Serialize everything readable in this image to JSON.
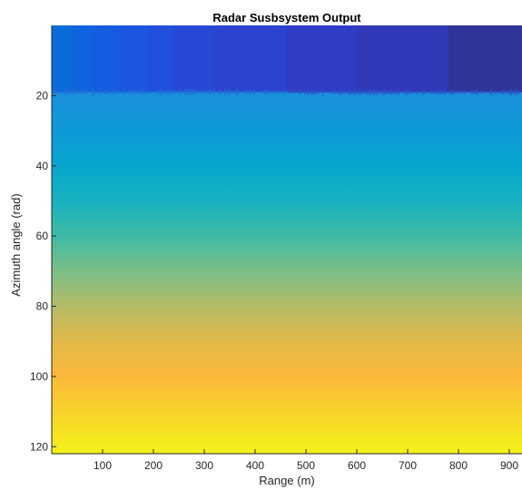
{
  "chart_data": {
    "type": "heatmap",
    "title": "Radar Susbsystem Output",
    "xlabel": "Range (m)",
    "ylabel": "Azimuth angle (rad)",
    "xlim": [
      0,
      925
    ],
    "ylim": [
      122,
      0
    ],
    "y_direction": "reversed",
    "x_ticks": [
      100,
      200,
      300,
      400,
      500,
      600,
      700,
      800,
      900
    ],
    "x_tick_labels": [
      "100",
      "200",
      "300",
      "400",
      "500",
      "600",
      "700",
      "800",
      "900"
    ],
    "y_ticks": [
      20,
      40,
      60,
      80,
      100,
      120
    ],
    "y_tick_labels": [
      "20",
      "40",
      "60",
      "80",
      "100",
      "120"
    ],
    "colormap": "parula",
    "colorbar": false,
    "grid": false,
    "top_band": {
      "row_range": [
        0,
        19
      ],
      "segments": [
        {
          "x_range": [
            0,
            40
          ],
          "color": "#0a6cd8"
        },
        {
          "x_range": [
            40,
            80
          ],
          "color": "#0f63dc"
        },
        {
          "x_range": [
            80,
            130
          ],
          "color": "#155de0"
        },
        {
          "x_range": [
            130,
            190
          ],
          "color": "#1a56e0"
        },
        {
          "x_range": [
            190,
            240
          ],
          "color": "#2150dc"
        },
        {
          "x_range": [
            240,
            320
          ],
          "color": "#2749d6"
        },
        {
          "x_range": [
            320,
            460
          ],
          "color": "#2c43cf"
        },
        {
          "x_range": [
            460,
            600
          ],
          "color": "#2f3dc6"
        },
        {
          "x_range": [
            600,
            780
          ],
          "color": "#3038b8"
        },
        {
          "x_range": [
            780,
            925
          ],
          "color": "#2f3597"
        }
      ]
    },
    "vertical_gradient": [
      {
        "y": 19,
        "color": "#1b8fdc"
      },
      {
        "y": 30,
        "color": "#0d9ad8"
      },
      {
        "y": 40,
        "color": "#08a6cf"
      },
      {
        "y": 50,
        "color": "#17b2c0"
      },
      {
        "y": 60,
        "color": "#3fbaa5"
      },
      {
        "y": 70,
        "color": "#7bbf86"
      },
      {
        "y": 80,
        "color": "#b4bb66"
      },
      {
        "y": 90,
        "color": "#e2b94a"
      },
      {
        "y": 100,
        "color": "#fbb93a"
      },
      {
        "y": 110,
        "color": "#f8d22a"
      },
      {
        "y": 122,
        "color": "#f3f21a"
      }
    ]
  }
}
